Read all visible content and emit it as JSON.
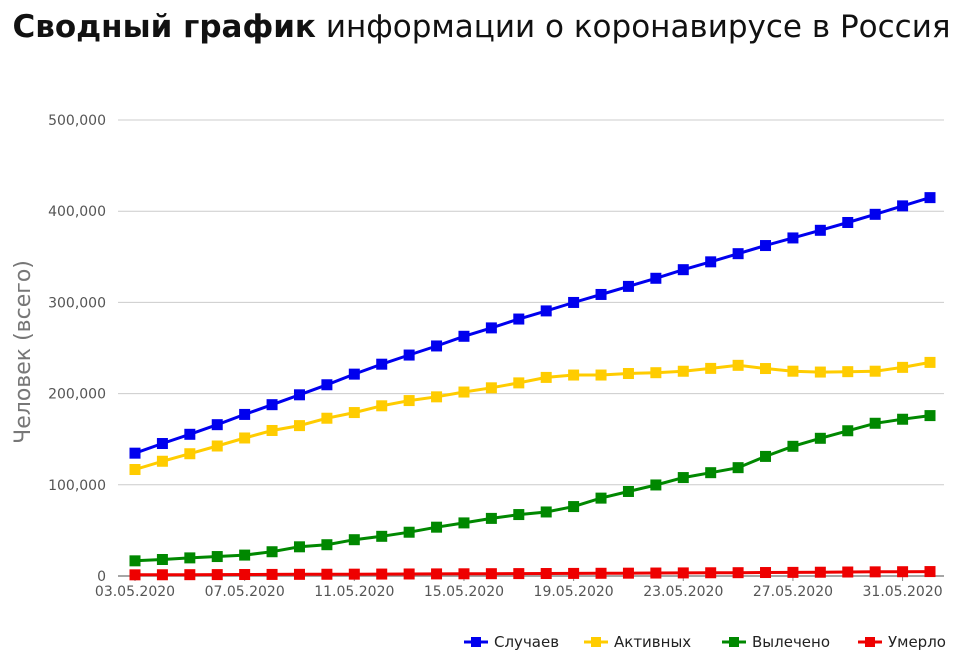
{
  "chart_data": {
    "type": "line",
    "title_bold": "Сводный график",
    "title_rest": " информации о коронавирусе в Россия",
    "xlabel": "",
    "ylabel": "Человек (всего)",
    "ylim": [
      0,
      500000
    ],
    "yticks": [
      0,
      100000,
      200000,
      300000,
      400000,
      500000
    ],
    "ytick_labels": [
      "0",
      "100,000",
      "200,000",
      "300,000",
      "400,000",
      "500,000"
    ],
    "x": [
      "03.05.2020",
      "04.05.2020",
      "05.05.2020",
      "06.05.2020",
      "07.05.2020",
      "08.05.2020",
      "09.05.2020",
      "10.05.2020",
      "11.05.2020",
      "12.05.2020",
      "13.05.2020",
      "14.05.2020",
      "15.05.2020",
      "16.05.2020",
      "17.05.2020",
      "18.05.2020",
      "19.05.2020",
      "20.05.2020",
      "21.05.2020",
      "22.05.2020",
      "23.05.2020",
      "24.05.2020",
      "25.05.2020",
      "26.05.2020",
      "27.05.2020",
      "28.05.2020",
      "29.05.2020",
      "30.05.2020",
      "31.05.2020",
      "01.06.2020"
    ],
    "xtick_labels": [
      "03.05.2020",
      "07.05.2020",
      "11.05.2020",
      "15.05.2020",
      "19.05.2020",
      "23.05.2020",
      "27.05.2020",
      "31.05.2020"
    ],
    "grid": true,
    "legend_position": "bottom-right",
    "series": [
      {
        "name": "Случаев",
        "color": "#0000ee",
        "values": [
          134687,
          145268,
          155370,
          165929,
          177160,
          187859,
          198676,
          209688,
          221344,
          232243,
          242271,
          252245,
          262843,
          272043,
          281752,
          290678,
          299941,
          308705,
          317554,
          326448,
          335882,
          344481,
          353427,
          362342,
          370680,
          379051,
          387623,
          396575,
          405843,
          414878
        ]
      },
      {
        "name": "Активных",
        "color": "#ffcc00",
        "values": [
          116768,
          125817,
          134054,
          142541,
          151336,
          159557,
          164893,
          172993,
          179218,
          186615,
          192355,
          196452,
          201712,
          206340,
          211748,
          217747,
          220341,
          220348,
          222022,
          222922,
          224506,
          227641,
          230996,
          227486,
          224551,
          223629,
          224058,
          224551,
          228766,
          234216
        ]
      },
      {
        "name": "Вылечено",
        "color": "#008800",
        "values": [
          16627,
          18095,
          19865,
          21327,
          22931,
          26608,
          32008,
          34306,
          39801,
          43512,
          48003,
          53530,
          58226,
          63166,
          67373,
          70209,
          76130,
          85392,
          92681,
          99825,
          107936,
          113299,
          118798,
          131129,
          142208,
          150993,
          159257,
          167469,
          171883,
          175877
        ]
      },
      {
        "name": "Умерло",
        "color": "#ee0000",
        "values": [
          1280,
          1356,
          1451,
          1537,
          1625,
          1723,
          1827,
          1915,
          2009,
          2116,
          2212,
          2305,
          2418,
          2537,
          2631,
          2722,
          2837,
          2972,
          3099,
          3249,
          3388,
          3541,
          3633,
          3807,
          3968,
          4142,
          4374,
          4555,
          4693,
          4855
        ]
      }
    ]
  }
}
